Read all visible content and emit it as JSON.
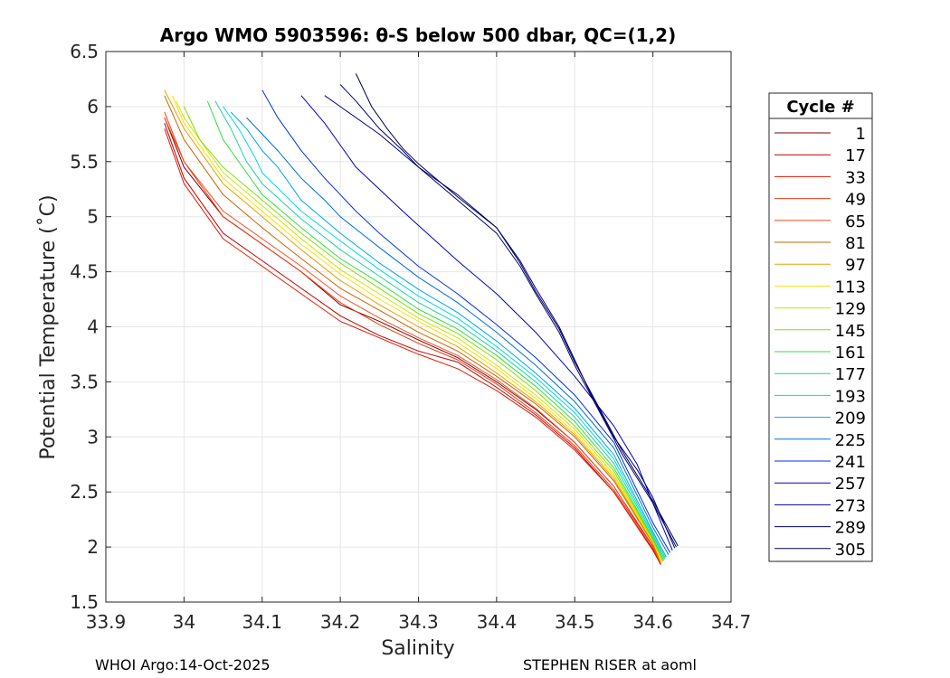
{
  "chart_data": {
    "type": "line",
    "title": "Argo WMO 5903596: θ-S below 500 dbar,  QC=(1,2)",
    "xlabel": "Salinity",
    "ylabel": "Potential Temperature (˚C)",
    "xlim": [
      33.9,
      34.7
    ],
    "ylim": [
      1.5,
      6.5
    ],
    "xticks": [
      33.9,
      34,
      34.1,
      34.2,
      34.3,
      34.4,
      34.5,
      34.6,
      34.7
    ],
    "xtick_labels": [
      "33.9",
      "34",
      "34.1",
      "34.2",
      "34.3",
      "34.4",
      "34.5",
      "34.6",
      "34.7"
    ],
    "yticks": [
      1.5,
      2,
      2.5,
      3,
      3.5,
      4,
      4.5,
      5,
      5.5,
      6,
      6.5
    ],
    "ytick_labels": [
      "1.5",
      "2",
      "2.5",
      "3",
      "3.5",
      "4",
      "4.5",
      "5",
      "5.5",
      "6",
      "6.5"
    ],
    "grid": true,
    "legend_title": "Cycle #",
    "legend_position": "outside-right",
    "series": [
      {
        "name": "1",
        "color": "#7a0000",
        "x": [
          33.975,
          34.0,
          34.05,
          34.1,
          34.15,
          34.2,
          34.25,
          34.3,
          34.35,
          34.4,
          34.45,
          34.5,
          34.55,
          34.6,
          34.61
        ],
        "y": [
          5.9,
          5.45,
          5.0,
          4.75,
          4.5,
          4.2,
          4.05,
          3.88,
          3.72,
          3.5,
          3.25,
          2.95,
          2.55,
          2.0,
          1.85
        ]
      },
      {
        "name": "17",
        "color": "#c00000",
        "x": [
          33.975,
          34.0,
          34.05,
          34.1,
          34.15,
          34.2,
          34.25,
          34.3,
          34.35,
          34.4,
          34.45,
          34.5,
          34.55,
          34.6,
          34.61
        ],
        "y": [
          5.85,
          5.35,
          4.85,
          4.6,
          4.35,
          4.1,
          3.92,
          3.78,
          3.68,
          3.45,
          3.2,
          2.9,
          2.5,
          1.98,
          1.84
        ]
      },
      {
        "name": "33",
        "color": "#e41a00",
        "x": [
          33.975,
          34.0,
          34.05,
          34.1,
          34.15,
          34.2,
          34.25,
          34.3,
          34.35,
          34.4,
          34.45,
          34.5,
          34.55,
          34.6,
          34.61
        ],
        "y": [
          5.8,
          5.3,
          4.8,
          4.55,
          4.3,
          4.05,
          3.9,
          3.75,
          3.62,
          3.42,
          3.18,
          2.88,
          2.5,
          1.97,
          1.84
        ]
      },
      {
        "name": "49",
        "color": "#f03a10",
        "x": [
          33.975,
          34.0,
          34.05,
          34.1,
          34.15,
          34.2,
          34.25,
          34.3,
          34.35,
          34.4,
          34.45,
          34.5,
          34.55,
          34.6,
          34.61
        ],
        "y": [
          5.95,
          5.5,
          5.0,
          4.75,
          4.5,
          4.22,
          4.02,
          3.85,
          3.7,
          3.48,
          3.22,
          2.92,
          2.52,
          2.0,
          1.85
        ]
      },
      {
        "name": "65",
        "color": "#f05020",
        "x": [
          33.975,
          34.0,
          34.05,
          34.1,
          34.15,
          34.2,
          34.25,
          34.3,
          34.35,
          34.4,
          34.45,
          34.5,
          34.55,
          34.6,
          34.61
        ],
        "y": [
          5.9,
          5.5,
          5.05,
          4.8,
          4.55,
          4.28,
          4.08,
          3.9,
          3.74,
          3.52,
          3.26,
          2.95,
          2.55,
          2.01,
          1.85
        ]
      },
      {
        "name": "81",
        "color": "#c86400",
        "x": [
          33.975,
          34.0,
          34.05,
          34.1,
          34.15,
          34.2,
          34.25,
          34.3,
          34.35,
          34.4,
          34.45,
          34.5,
          34.55,
          34.6,
          34.61
        ],
        "y": [
          6.1,
          5.7,
          5.2,
          4.9,
          4.62,
          4.35,
          4.15,
          3.95,
          3.78,
          3.55,
          3.3,
          3.0,
          2.6,
          2.03,
          1.86
        ]
      },
      {
        "name": "97",
        "color": "#e8a000",
        "x": [
          33.975,
          34.0,
          34.05,
          34.1,
          34.15,
          34.2,
          34.25,
          34.3,
          34.35,
          34.4,
          34.45,
          34.5,
          34.55,
          34.6,
          34.61
        ],
        "y": [
          6.15,
          5.8,
          5.3,
          5.0,
          4.7,
          4.42,
          4.2,
          4.0,
          3.82,
          3.58,
          3.32,
          3.02,
          2.62,
          2.04,
          1.86
        ]
      },
      {
        "name": "113",
        "color": "#ffe000",
        "x": [
          33.985,
          34.0,
          34.05,
          34.1,
          34.15,
          34.2,
          34.25,
          34.3,
          34.35,
          34.4,
          34.45,
          34.5,
          34.55,
          34.6,
          34.612
        ],
        "y": [
          6.1,
          5.85,
          5.35,
          5.05,
          4.75,
          4.48,
          4.25,
          4.05,
          3.86,
          3.62,
          3.35,
          3.04,
          2.64,
          2.05,
          1.86
        ]
      },
      {
        "name": "129",
        "color": "#c8e800",
        "x": [
          33.99,
          34.0,
          34.05,
          34.1,
          34.15,
          34.2,
          34.25,
          34.3,
          34.35,
          34.4,
          34.45,
          34.5,
          34.55,
          34.6,
          34.612
        ],
        "y": [
          6.05,
          5.9,
          5.4,
          5.1,
          4.8,
          4.52,
          4.3,
          4.08,
          3.9,
          3.65,
          3.38,
          3.07,
          2.66,
          2.06,
          1.87
        ]
      },
      {
        "name": "145",
        "color": "#80e000",
        "x": [
          34.0,
          34.02,
          34.05,
          34.1,
          34.15,
          34.2,
          34.25,
          34.3,
          34.35,
          34.4,
          34.45,
          34.5,
          34.55,
          34.6,
          34.613
        ],
        "y": [
          6.0,
          5.7,
          5.45,
          5.15,
          4.85,
          4.58,
          4.35,
          4.12,
          3.94,
          3.7,
          3.42,
          3.1,
          2.69,
          2.07,
          1.87
        ]
      },
      {
        "name": "161",
        "color": "#30e040",
        "x": [
          34.03,
          34.05,
          34.08,
          34.1,
          34.15,
          34.2,
          34.25,
          34.3,
          34.35,
          34.4,
          34.45,
          34.5,
          34.55,
          34.6,
          34.614
        ],
        "y": [
          6.05,
          5.7,
          5.4,
          5.2,
          4.9,
          4.62,
          4.4,
          4.16,
          3.98,
          3.74,
          3.46,
          3.14,
          2.72,
          2.08,
          1.88
        ]
      },
      {
        "name": "177",
        "color": "#20d0a0",
        "x": [
          34.04,
          34.06,
          34.08,
          34.1,
          34.15,
          34.2,
          34.25,
          34.3,
          34.35,
          34.4,
          34.45,
          34.5,
          34.55,
          34.6,
          34.615
        ],
        "y": [
          6.05,
          5.8,
          5.5,
          5.3,
          4.98,
          4.7,
          4.46,
          4.22,
          4.03,
          3.78,
          3.5,
          3.18,
          2.76,
          2.1,
          1.89
        ]
      },
      {
        "name": "193",
        "color": "#00d8e8",
        "x": [
          34.05,
          34.07,
          34.09,
          34.1,
          34.15,
          34.2,
          34.25,
          34.3,
          34.35,
          34.4,
          34.45,
          34.5,
          34.55,
          34.6,
          34.616
        ],
        "y": [
          6.0,
          5.8,
          5.55,
          5.4,
          5.05,
          4.78,
          4.52,
          4.28,
          4.08,
          3.82,
          3.54,
          3.22,
          2.8,
          2.12,
          1.9
        ]
      },
      {
        "name": "209",
        "color": "#00a8e0",
        "x": [
          34.06,
          34.08,
          34.1,
          34.12,
          34.15,
          34.2,
          34.25,
          34.3,
          34.35,
          34.4,
          34.45,
          34.5,
          34.55,
          34.6,
          34.617
        ],
        "y": [
          5.95,
          5.8,
          5.6,
          5.45,
          5.15,
          4.85,
          4.58,
          4.34,
          4.13,
          3.87,
          3.58,
          3.26,
          2.84,
          2.14,
          1.91
        ]
      },
      {
        "name": "225",
        "color": "#0070d0",
        "x": [
          34.08,
          34.1,
          34.12,
          34.15,
          34.18,
          34.2,
          34.25,
          34.3,
          34.35,
          34.4,
          34.45,
          34.5,
          34.55,
          34.6,
          34.62
        ],
        "y": [
          5.9,
          5.75,
          5.6,
          5.35,
          5.15,
          5.0,
          4.72,
          4.45,
          4.22,
          3.95,
          3.65,
          3.32,
          2.9,
          2.18,
          1.93
        ]
      },
      {
        "name": "241",
        "color": "#0030e0",
        "x": [
          34.1,
          34.12,
          34.15,
          34.18,
          34.2,
          34.22,
          34.25,
          34.3,
          34.35,
          34.4,
          34.45,
          34.5,
          34.55,
          34.6,
          34.622
        ],
        "y": [
          6.15,
          5.9,
          5.6,
          5.35,
          5.2,
          5.05,
          4.85,
          4.55,
          4.3,
          4.02,
          3.72,
          3.38,
          2.95,
          2.22,
          1.95
        ]
      },
      {
        "name": "257",
        "color": "#0000c0",
        "x": [
          34.15,
          34.18,
          34.2,
          34.22,
          34.25,
          34.28,
          34.3,
          34.35,
          34.4,
          34.45,
          34.5,
          34.55,
          34.58,
          34.6,
          34.625
        ],
        "y": [
          6.1,
          5.85,
          5.65,
          5.45,
          5.25,
          5.05,
          4.92,
          4.6,
          4.3,
          3.95,
          3.55,
          3.1,
          2.75,
          2.4,
          1.97
        ]
      },
      {
        "name": "273",
        "color": "#00008c",
        "x": [
          34.18,
          34.2,
          34.25,
          34.3,
          34.35,
          34.4,
          34.43,
          34.45,
          34.48,
          34.5,
          34.52,
          34.55,
          34.58,
          34.6,
          34.628
        ],
        "y": [
          6.1,
          6.0,
          5.75,
          5.45,
          5.2,
          4.9,
          4.6,
          4.35,
          4.0,
          3.7,
          3.4,
          3.0,
          2.7,
          2.45,
          1.99
        ]
      },
      {
        "name": "289",
        "color": "#000070",
        "x": [
          34.2,
          34.22,
          34.25,
          34.28,
          34.3,
          34.35,
          34.4,
          34.43,
          34.45,
          34.48,
          34.5,
          34.53,
          34.56,
          34.6,
          34.63
        ],
        "y": [
          6.2,
          6.05,
          5.8,
          5.6,
          5.45,
          5.15,
          4.85,
          4.55,
          4.3,
          3.95,
          3.65,
          3.25,
          2.85,
          2.4,
          2.0
        ]
      },
      {
        "name": "305",
        "color": "#000050",
        "x": [
          34.22,
          34.24,
          34.26,
          34.28,
          34.3,
          34.35,
          34.4,
          34.43,
          34.45,
          34.48,
          34.5,
          34.53,
          34.56,
          34.6,
          34.632
        ],
        "y": [
          6.3,
          6.0,
          5.8,
          5.62,
          5.48,
          5.18,
          4.9,
          4.58,
          4.32,
          3.98,
          3.68,
          3.28,
          2.88,
          2.42,
          2.01
        ]
      }
    ]
  },
  "footer": {
    "left": "WHOI Argo:14-Oct-2025",
    "right": "STEPHEN RISER at aoml"
  }
}
